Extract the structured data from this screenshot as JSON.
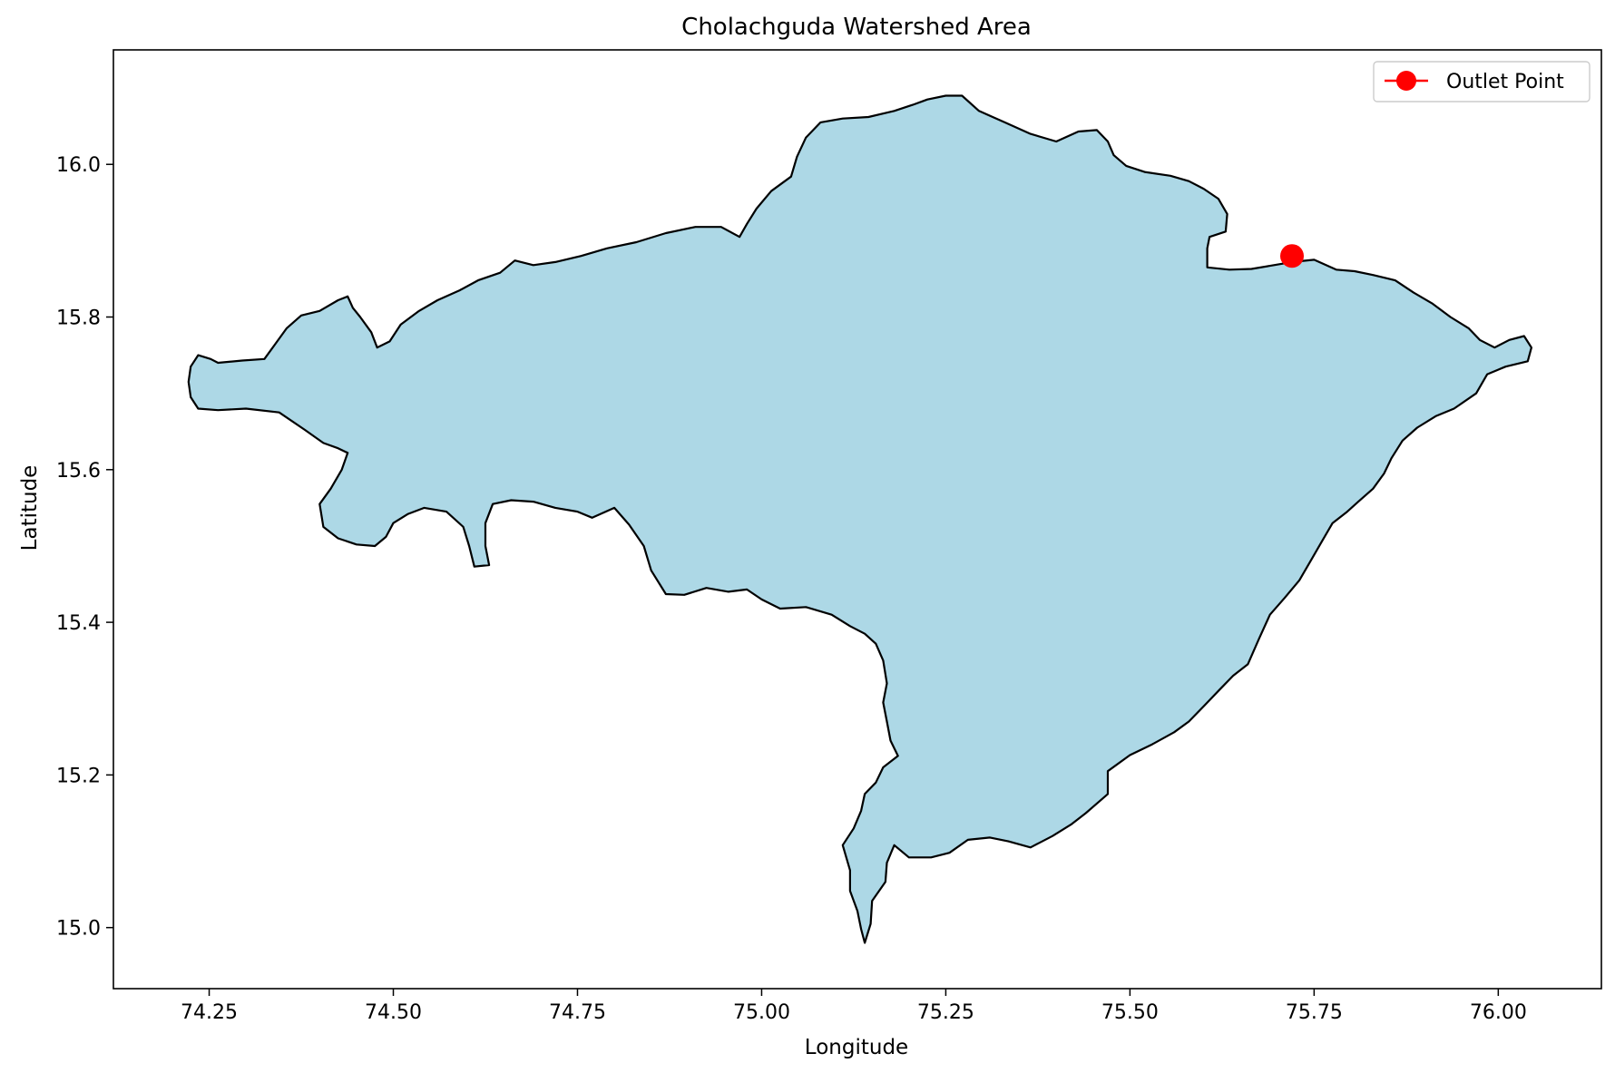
{
  "chart_data": {
    "type": "map",
    "title": "Cholachguda Watershed Area",
    "xlabel": "Longitude",
    "ylabel": "Latitude",
    "xlim": [
      74.12,
      76.14
    ],
    "ylim": [
      14.92,
      16.15
    ],
    "xticks": [
      74.25,
      74.5,
      74.75,
      75.0,
      75.25,
      75.5,
      75.75,
      76.0
    ],
    "xtick_labels": [
      "74.25",
      "74.50",
      "74.75",
      "75.00",
      "75.25",
      "75.50",
      "75.75",
      "76.00"
    ],
    "yticks": [
      15.0,
      15.2,
      15.4,
      15.6,
      15.8,
      16.0
    ],
    "ytick_labels": [
      "15.0",
      "15.2",
      "15.4",
      "15.6",
      "15.8",
      "16.0"
    ],
    "grid": false,
    "legend": {
      "position": "top-right",
      "entries": [
        {
          "label": "Outlet Point",
          "color": "#ff0000",
          "marker": "circle"
        }
      ]
    },
    "watershed": {
      "name": "Cholachguda Watershed",
      "fill": "#add8e6",
      "edge": "#000000",
      "boundary": [
        [
          74.235,
          15.75
        ],
        [
          74.252,
          15.745
        ],
        [
          74.262,
          15.74
        ],
        [
          74.295,
          15.743
        ],
        [
          74.325,
          15.745
        ],
        [
          74.34,
          15.765
        ],
        [
          74.355,
          15.785
        ],
        [
          74.375,
          15.802
        ],
        [
          74.4,
          15.808
        ],
        [
          74.425,
          15.822
        ],
        [
          74.438,
          15.827
        ],
        [
          74.445,
          15.812
        ],
        [
          74.455,
          15.8
        ],
        [
          74.47,
          15.78
        ],
        [
          74.478,
          15.76
        ],
        [
          74.495,
          15.768
        ],
        [
          74.51,
          15.79
        ],
        [
          74.535,
          15.808
        ],
        [
          74.56,
          15.822
        ],
        [
          74.59,
          15.835
        ],
        [
          74.615,
          15.848
        ],
        [
          74.645,
          15.858
        ],
        [
          74.665,
          15.874
        ],
        [
          74.69,
          15.868
        ],
        [
          74.72,
          15.872
        ],
        [
          74.755,
          15.88
        ],
        [
          74.79,
          15.89
        ],
        [
          74.83,
          15.898
        ],
        [
          74.87,
          15.91
        ],
        [
          74.91,
          15.918
        ],
        [
          74.945,
          15.918
        ],
        [
          74.97,
          15.905
        ],
        [
          74.98,
          15.922
        ],
        [
          74.993,
          15.942
        ],
        [
          75.013,
          15.965
        ],
        [
          75.04,
          15.984
        ],
        [
          75.048,
          16.01
        ],
        [
          75.06,
          16.035
        ],
        [
          75.08,
          16.055
        ],
        [
          75.11,
          16.06
        ],
        [
          75.145,
          16.062
        ],
        [
          75.18,
          16.07
        ],
        [
          75.205,
          16.078
        ],
        [
          75.225,
          16.085
        ],
        [
          75.25,
          16.09
        ],
        [
          75.272,
          16.09
        ],
        [
          75.295,
          16.07
        ],
        [
          75.33,
          16.055
        ],
        [
          75.365,
          16.04
        ],
        [
          75.4,
          16.03
        ],
        [
          75.43,
          16.043
        ],
        [
          75.455,
          16.045
        ],
        [
          75.47,
          16.03
        ],
        [
          75.478,
          16.012
        ],
        [
          75.495,
          15.998
        ],
        [
          75.52,
          15.99
        ],
        [
          75.555,
          15.985
        ],
        [
          75.58,
          15.978
        ],
        [
          75.6,
          15.968
        ],
        [
          75.62,
          15.955
        ],
        [
          75.632,
          15.935
        ],
        [
          75.63,
          15.912
        ],
        [
          75.608,
          15.905
        ],
        [
          75.605,
          15.89
        ],
        [
          75.605,
          15.865
        ],
        [
          75.635,
          15.862
        ],
        [
          75.665,
          15.863
        ],
        [
          75.69,
          15.867
        ],
        [
          75.72,
          15.872
        ],
        [
          75.75,
          15.875
        ],
        [
          75.78,
          15.862
        ],
        [
          75.805,
          15.86
        ],
        [
          75.83,
          15.855
        ],
        [
          75.86,
          15.848
        ],
        [
          75.885,
          15.832
        ],
        [
          75.91,
          15.818
        ],
        [
          75.935,
          15.8
        ],
        [
          75.96,
          15.785
        ],
        [
          75.975,
          15.77
        ],
        [
          75.995,
          15.76
        ],
        [
          76.015,
          15.77
        ],
        [
          76.035,
          15.775
        ],
        [
          76.045,
          15.76
        ],
        [
          76.04,
          15.742
        ],
        [
          76.01,
          15.735
        ],
        [
          75.985,
          15.725
        ],
        [
          75.97,
          15.7
        ],
        [
          75.94,
          15.68
        ],
        [
          75.915,
          15.67
        ],
        [
          75.89,
          15.655
        ],
        [
          75.87,
          15.638
        ],
        [
          75.855,
          15.615
        ],
        [
          75.845,
          15.595
        ],
        [
          75.83,
          15.575
        ],
        [
          75.81,
          15.558
        ],
        [
          75.795,
          15.545
        ],
        [
          75.775,
          15.53
        ],
        [
          75.76,
          15.505
        ],
        [
          75.745,
          15.48
        ],
        [
          75.73,
          15.455
        ],
        [
          75.71,
          15.432
        ],
        [
          75.69,
          15.41
        ],
        [
          75.675,
          15.378
        ],
        [
          75.66,
          15.345
        ],
        [
          75.64,
          15.33
        ],
        [
          75.62,
          15.31
        ],
        [
          75.6,
          15.29
        ],
        [
          75.58,
          15.27
        ],
        [
          75.56,
          15.256
        ],
        [
          75.53,
          15.24
        ],
        [
          75.5,
          15.226
        ],
        [
          75.47,
          15.205
        ],
        [
          75.47,
          15.175
        ],
        [
          75.44,
          15.15
        ],
        [
          75.42,
          15.135
        ],
        [
          75.395,
          15.12
        ],
        [
          75.365,
          15.105
        ],
        [
          75.335,
          15.113
        ],
        [
          75.31,
          15.118
        ],
        [
          75.28,
          15.115
        ],
        [
          75.255,
          15.098
        ],
        [
          75.23,
          15.092
        ],
        [
          75.2,
          15.092
        ],
        [
          75.18,
          15.108
        ],
        [
          75.17,
          15.085
        ],
        [
          75.168,
          15.06
        ],
        [
          75.15,
          15.035
        ],
        [
          75.148,
          15.005
        ],
        [
          75.14,
          14.98
        ],
        [
          75.135,
          14.998
        ],
        [
          75.13,
          15.022
        ],
        [
          75.12,
          15.048
        ],
        [
          75.12,
          15.075
        ],
        [
          75.11,
          15.108
        ],
        [
          75.125,
          15.13
        ],
        [
          75.135,
          15.153
        ],
        [
          75.14,
          15.175
        ],
        [
          75.155,
          15.19
        ],
        [
          75.165,
          15.21
        ],
        [
          75.185,
          15.225
        ],
        [
          75.175,
          15.245
        ],
        [
          75.17,
          15.27
        ],
        [
          75.165,
          15.295
        ],
        [
          75.17,
          15.32
        ],
        [
          75.165,
          15.35
        ],
        [
          75.155,
          15.372
        ],
        [
          75.14,
          15.385
        ],
        [
          75.12,
          15.395
        ],
        [
          75.095,
          15.41
        ],
        [
          75.06,
          15.42
        ],
        [
          75.025,
          15.418
        ],
        [
          75.0,
          15.43
        ],
        [
          74.98,
          15.443
        ],
        [
          74.955,
          15.44
        ],
        [
          74.925,
          15.445
        ],
        [
          74.895,
          15.436
        ],
        [
          74.87,
          15.437
        ],
        [
          74.85,
          15.468
        ],
        [
          74.84,
          15.5
        ],
        [
          74.82,
          15.528
        ],
        [
          74.8,
          15.55
        ],
        [
          74.77,
          15.537
        ],
        [
          74.75,
          15.545
        ],
        [
          74.72,
          15.55
        ],
        [
          74.69,
          15.558
        ],
        [
          74.66,
          15.56
        ],
        [
          74.635,
          15.555
        ],
        [
          74.625,
          15.53
        ],
        [
          74.625,
          15.5
        ],
        [
          74.63,
          15.475
        ],
        [
          74.61,
          15.473
        ],
        [
          74.603,
          15.5
        ],
        [
          74.595,
          15.525
        ],
        [
          74.572,
          15.545
        ],
        [
          74.542,
          15.55
        ],
        [
          74.52,
          15.542
        ],
        [
          74.5,
          15.53
        ],
        [
          74.49,
          15.512
        ],
        [
          74.475,
          15.5
        ],
        [
          74.45,
          15.502
        ],
        [
          74.425,
          15.51
        ],
        [
          74.405,
          15.525
        ],
        [
          74.4,
          15.555
        ],
        [
          74.415,
          15.575
        ],
        [
          74.43,
          15.6
        ],
        [
          74.438,
          15.622
        ],
        [
          74.425,
          15.628
        ],
        [
          74.405,
          15.635
        ],
        [
          74.38,
          15.652
        ],
        [
          74.345,
          15.675
        ],
        [
          74.3,
          15.68
        ],
        [
          74.262,
          15.678
        ],
        [
          74.235,
          15.68
        ],
        [
          74.225,
          15.695
        ],
        [
          74.222,
          15.715
        ],
        [
          74.225,
          15.735
        ]
      ]
    },
    "outlet": {
      "label": "Outlet Point",
      "lon": 75.72,
      "lat": 15.88,
      "color": "#ff0000"
    }
  }
}
